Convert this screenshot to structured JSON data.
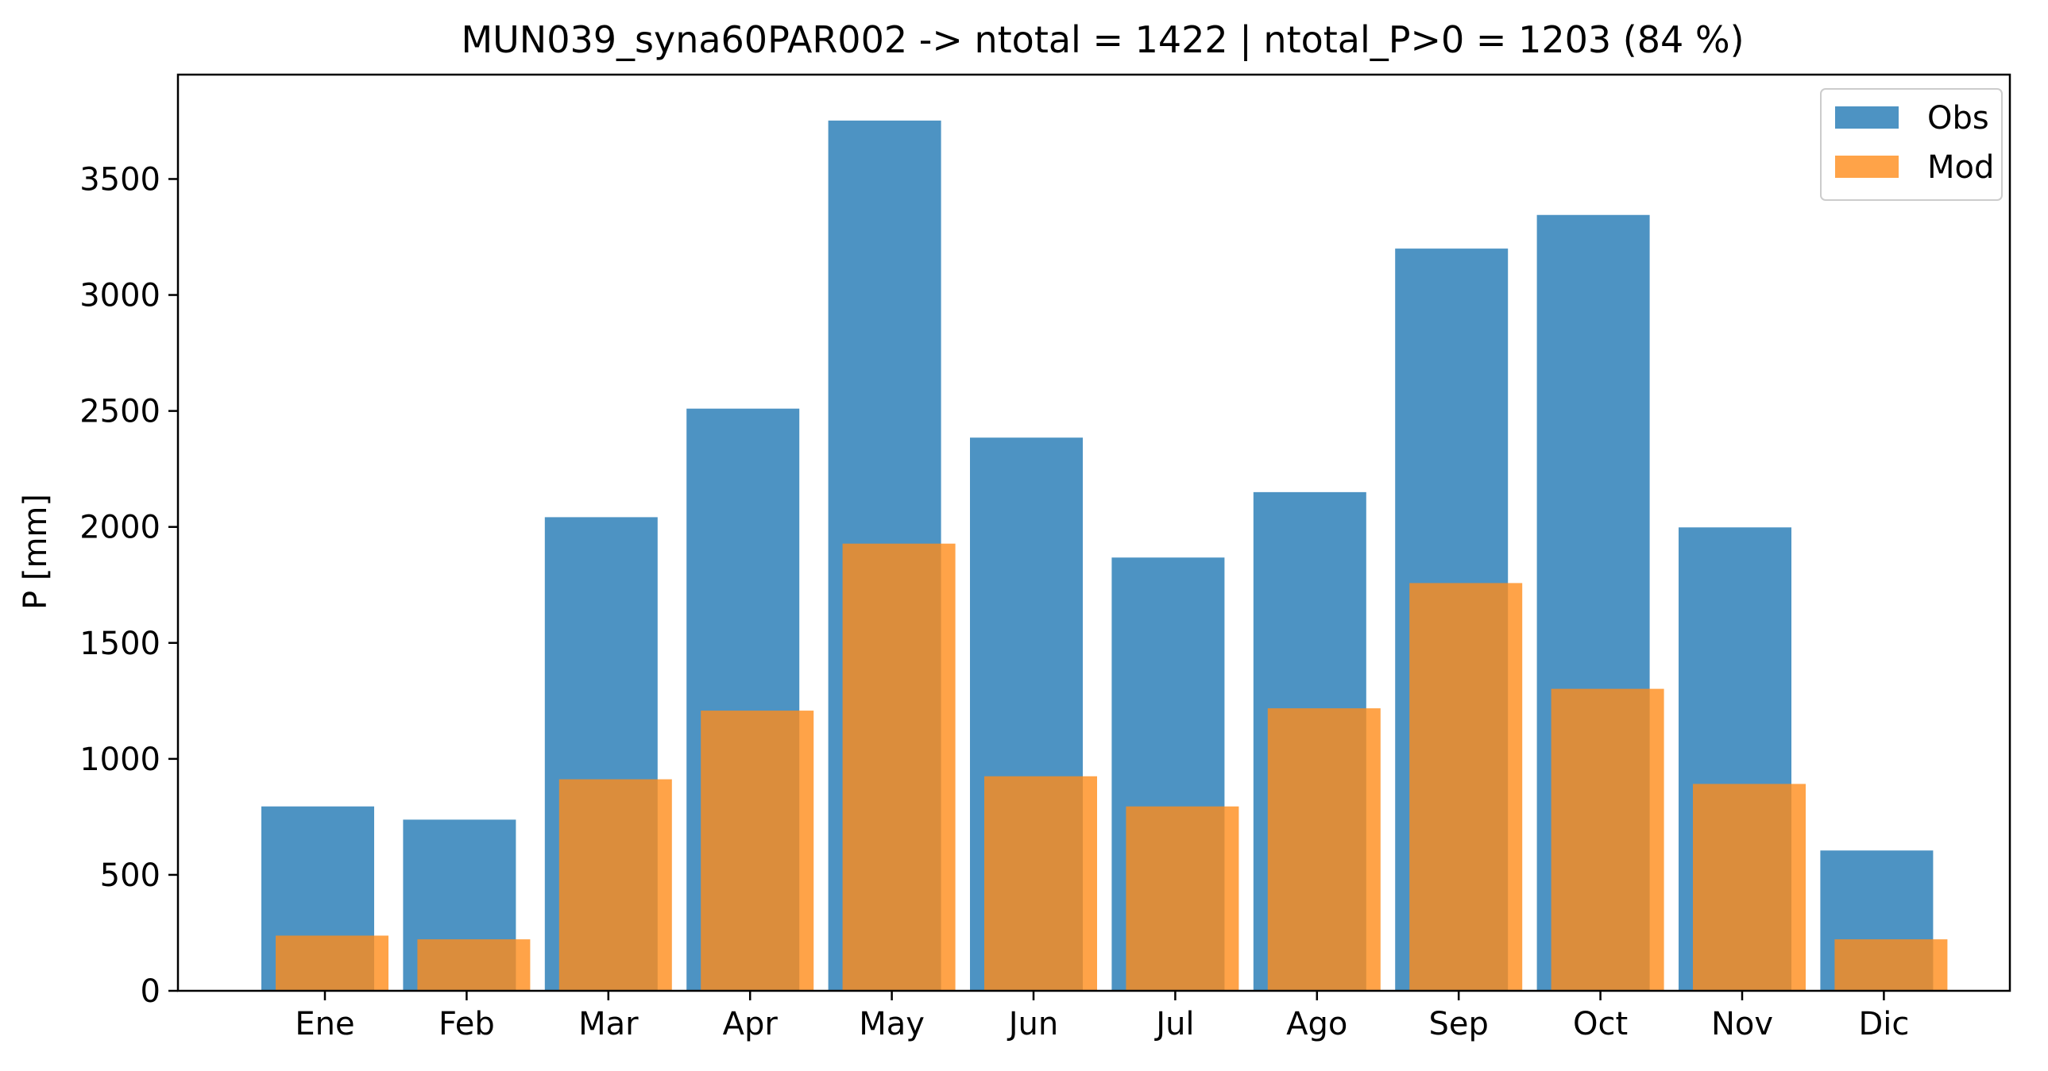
{
  "chart_data": {
    "type": "bar",
    "title": "MUN039_syna60PAR002 -> ntotal = 1422 | ntotal_P>0 = 1203 (84 %)",
    "xlabel": "",
    "ylabel": "P [mm]",
    "categories": [
      "Ene",
      "Feb",
      "Mar",
      "Apr",
      "May",
      "Jun",
      "Jul",
      "Ago",
      "Sep",
      "Oct",
      "Nov",
      "Dic"
    ],
    "ylim": [
      0,
      3950
    ],
    "yticks": [
      0,
      500,
      1000,
      1500,
      2000,
      2500,
      3000,
      3500
    ],
    "grid": false,
    "legend_position": "top-right",
    "series": [
      {
        "name": "Obs",
        "color": "#4d93c3",
        "values": [
          795,
          738,
          2042,
          2510,
          3752,
          2385,
          1868,
          2150,
          3200,
          3345,
          1998,
          605
        ]
      },
      {
        "name": "Mod",
        "color": "#ff8c1a",
        "opacity": 0.8,
        "values": [
          238,
          222,
          912,
          1208,
          1928,
          925,
          795,
          1218,
          1758,
          1302,
          892,
          222
        ]
      }
    ]
  }
}
